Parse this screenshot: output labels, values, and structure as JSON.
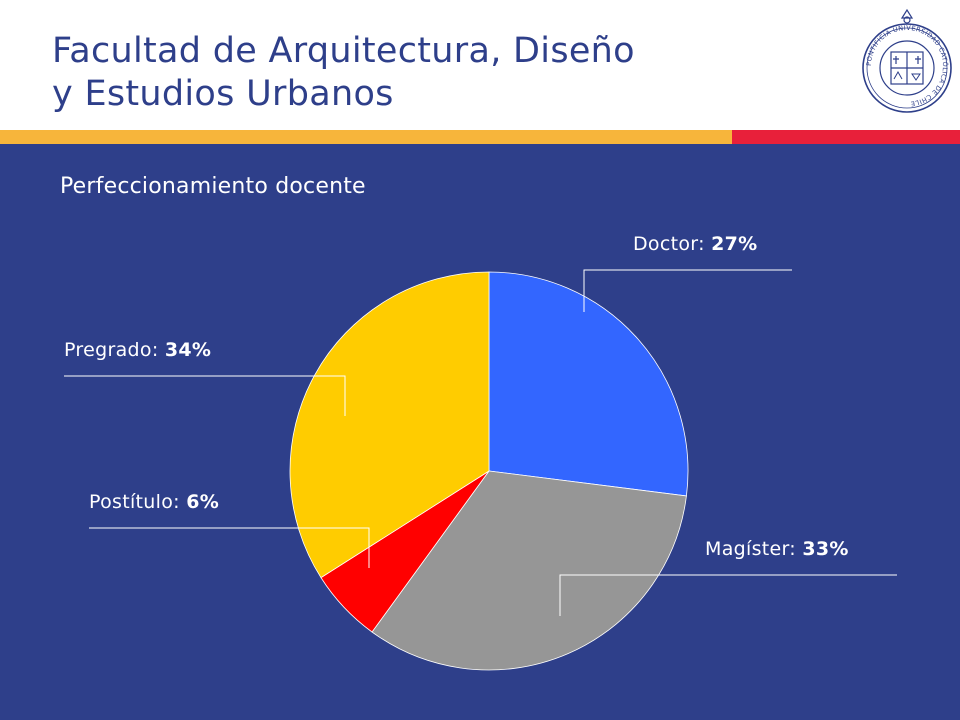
{
  "header": {
    "title_line1": "Facultad de Arquitectura, Diseño",
    "title_line2": "y Estudios Urbanos",
    "logo_text": "PONTIFICIA UNIVERSIDAD CATÓLICA DE CHILE"
  },
  "colors": {
    "background": "#2e3f8a",
    "stripe_yellow": "#f7b53b",
    "stripe_red": "#e8203a",
    "title": "#2e3f8a"
  },
  "chart_data": {
    "type": "pie",
    "title": "Perfeccionamiento docente",
    "slices": [
      {
        "label": "Doctor",
        "value": 27,
        "value_label": "27%",
        "color": "#3366ff"
      },
      {
        "label": "Magíster",
        "value": 33,
        "value_label": "33%",
        "color": "#969696"
      },
      {
        "label": "Postítulo",
        "value": 6,
        "value_label": "6%",
        "color": "#ff0000"
      },
      {
        "label": "Pregrado",
        "value": 34,
        "value_label": "34%",
        "color": "#ffcc00"
      }
    ]
  }
}
